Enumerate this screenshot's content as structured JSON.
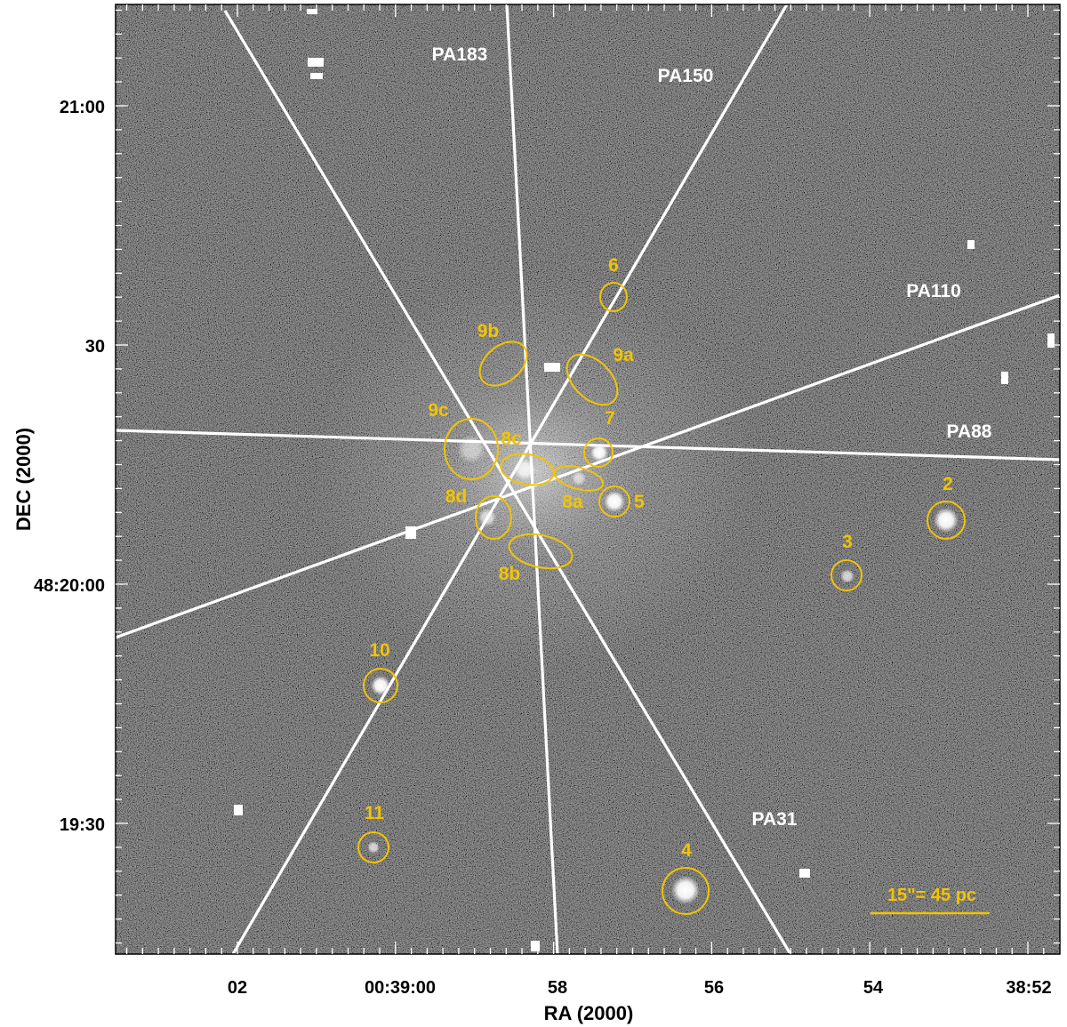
{
  "axes": {
    "x_title": "RA (2000)",
    "y_title": "DEC (2000)",
    "x_ticks": [
      "02",
      "00:39:00",
      "58",
      "56",
      "54",
      "38:52"
    ],
    "y_ticks": [
      "21:00",
      "30",
      "48:20:00",
      "19:30"
    ]
  },
  "position_angle_labels": [
    "PA183",
    "PA150",
    "PA110",
    "PA88",
    "PA31"
  ],
  "sources": [
    "6",
    "9b",
    "9a",
    "9c",
    "7",
    "8c",
    "8d",
    "8a",
    "5",
    "8b",
    "2",
    "3",
    "10",
    "11",
    "4"
  ],
  "scale_bar": {
    "label": "15\"= 45 pc"
  },
  "colors": {
    "sky_background": "#1a1a1a",
    "slit_line": "#ffffff",
    "source_marker": "#f2c400",
    "axis_text": "#000000"
  }
}
